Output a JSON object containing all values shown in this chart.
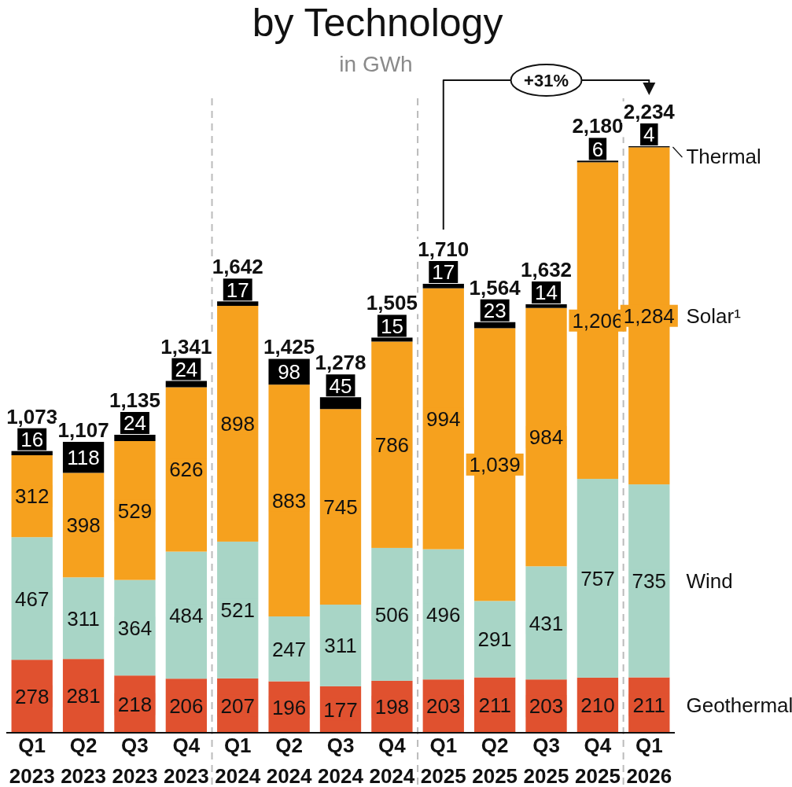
{
  "chart_data": {
    "type": "bar",
    "title": "by Technology",
    "subtitle": "in GWh",
    "stacked": true,
    "categories": [
      "Q1 2023",
      "Q2 2023",
      "Q3 2023",
      "Q4 2023",
      "Q1 2024",
      "Q2 2024",
      "Q3 2024",
      "Q4 2024",
      "Q1 2025",
      "Q2 2025",
      "Q3 2025",
      "Q4 2025",
      "Q1 2026"
    ],
    "series": [
      {
        "name": "Geothermal",
        "color": "#e0512f",
        "values": [
          278,
          281,
          218,
          206,
          207,
          196,
          177,
          198,
          203,
          211,
          203,
          210,
          211
        ]
      },
      {
        "name": "Wind",
        "color": "#a8d5c6",
        "values": [
          467,
          311,
          364,
          484,
          521,
          247,
          311,
          506,
          496,
          291,
          431,
          757,
          735
        ]
      },
      {
        "name": "Solar¹",
        "color": "#f6a11e",
        "values": [
          312,
          398,
          529,
          626,
          898,
          883,
          745,
          786,
          994,
          1039,
          984,
          1206,
          1284
        ],
        "value_labels": [
          "312",
          "398",
          "529",
          "626",
          "898",
          "883",
          "745",
          "786",
          "994",
          "1,039",
          "984",
          "1,206",
          "1,284"
        ]
      },
      {
        "name": "Thermal",
        "color": "#000000",
        "values": [
          16,
          118,
          24,
          24,
          17,
          98,
          45,
          15,
          17,
          23,
          14,
          6,
          4
        ]
      }
    ],
    "data_labels": true,
    "totals": [
      "1,073",
      "1,107",
      "1,135",
      "1,341",
      "1,642",
      "1,425",
      "1,278",
      "1,505",
      "1,710",
      "1,564",
      "1,632",
      "2,180",
      "2,234"
    ],
    "legend": "right",
    "annotations": [
      "+31%"
    ]
  }
}
